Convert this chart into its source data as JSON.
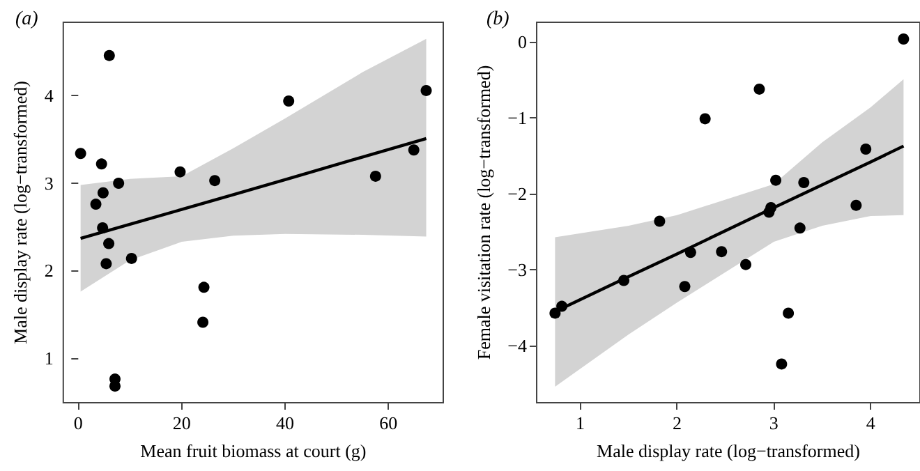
{
  "chart_data": [
    {
      "type": "scatter",
      "title": "(a)",
      "xlabel": "Mean fruit biomass at court (g)",
      "ylabel": "Male display rate (log−transformed)",
      "xlim": [
        -2.9,
        70.6
      ],
      "ylim": [
        0.49,
        4.84
      ],
      "xticks": [
        0,
        20,
        40,
        60
      ],
      "yticks": [
        1,
        2,
        3,
        4
      ],
      "grid": false,
      "marker": "circle",
      "series": [
        {
          "color": "#000000",
          "x": [
            0.45,
            3.4,
            4.5,
            4.7,
            4.8,
            5.4,
            5.9,
            6,
            7.1,
            7.1,
            7.8,
            10.3,
            19.7,
            24.1,
            24.3,
            26.4,
            40.7,
            57.5,
            64.9,
            67.3
          ],
          "values": [
            3.34,
            2.76,
            3.22,
            2.49,
            2.89,
            2.08,
            2.31,
            4.46,
            0.76,
            0.68,
            3.0,
            2.14,
            3.13,
            1.41,
            1.81,
            3.03,
            3.94,
            3.08,
            3.38,
            4.06
          ]
        },
        {
          "type": "line",
          "color": "#000000",
          "marker": "none",
          "line_style": "solid",
          "x": [
            0.45,
            10,
            20,
            30,
            40,
            55,
            67.3
          ],
          "values": [
            2.37,
            2.53,
            2.7,
            2.87,
            3.04,
            3.3,
            3.51
          ],
          "lower": [
            1.76,
            2.12,
            2.33,
            2.4,
            2.42,
            2.41,
            2.39
          ],
          "upper": [
            2.98,
            3.05,
            3.08,
            3.4,
            3.74,
            4.27,
            4.65
          ]
        }
      ]
    },
    {
      "type": "scatter",
      "title": "(b)",
      "xlabel": "Male display rate (log−transformed)",
      "ylabel": "Female visitation rate (log−transformed)",
      "xlim": [
        0.55,
        4.51
      ],
      "ylim": [
        -4.75,
        0.26
      ],
      "xticks": [
        1,
        2,
        3,
        4
      ],
      "yticks": [
        -4,
        -3,
        -2,
        -1,
        0
      ],
      "grid": false,
      "marker": "circle",
      "series": [
        {
          "color": "#000000",
          "x": [
            0.74,
            0.81,
            1.45,
            1.82,
            2.08,
            2.14,
            2.29,
            2.46,
            2.71,
            2.85,
            2.95,
            2.97,
            3.02,
            3.08,
            3.15,
            3.27,
            3.31,
            3.85,
            3.95,
            4.34
          ],
          "values": [
            -3.57,
            -3.48,
            -3.14,
            -2.36,
            -3.22,
            -2.77,
            -1.01,
            -2.76,
            -2.93,
            -0.62,
            -2.24,
            -2.18,
            -1.82,
            -4.24,
            -3.57,
            -2.45,
            -1.85,
            -2.15,
            -1.41,
            0.04
          ]
        },
        {
          "type": "line",
          "color": "#000000",
          "marker": "none",
          "line_style": "solid",
          "x": [
            0.74,
            1.5,
            2,
            3,
            3.5,
            4,
            4.34
          ],
          "values": [
            -3.55,
            -3.09,
            -2.79,
            -2.18,
            -1.88,
            -1.58,
            -1.37
          ],
          "lower": [
            -4.54,
            -3.85,
            -3.43,
            -2.63,
            -2.42,
            -2.29,
            -2.28
          ],
          "upper": [
            -2.57,
            -2.42,
            -2.28,
            -1.87,
            -1.32,
            -0.86,
            -0.49
          ]
        }
      ]
    }
  ]
}
